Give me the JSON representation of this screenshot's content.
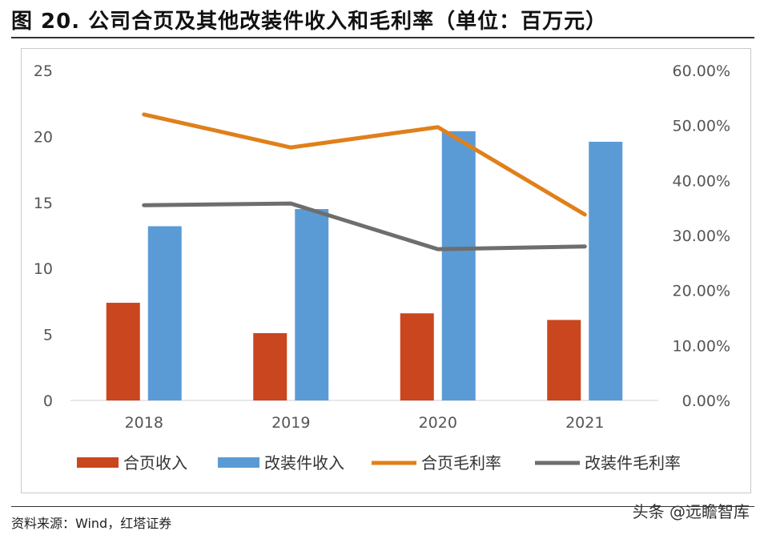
{
  "header": {
    "figure_title": "图 20. 公司合页及其他改装件收入和毛利率（单位：百万元）"
  },
  "footer": {
    "source": "资料来源：Wind，红塔证券",
    "watermark": "头条 @远瞻智库"
  },
  "chart_data": {
    "type": "bar+line",
    "title": "公司合页及其他改装件收入和毛利率（单位：百万元）",
    "categories": [
      "2018",
      "2019",
      "2020",
      "2021"
    ],
    "y_left": {
      "range": [
        0,
        25
      ],
      "ticks": [
        "0",
        "5",
        "10",
        "15",
        "20",
        "25"
      ],
      "tick_values": [
        0,
        5,
        10,
        15,
        20,
        25
      ]
    },
    "y_right": {
      "range": [
        0,
        0.6
      ],
      "ticks": [
        "0.00%",
        "10.00%",
        "20.00%",
        "30.00%",
        "40.00%",
        "50.00%",
        "60.00%"
      ],
      "tick_values": [
        0,
        0.1,
        0.2,
        0.3,
        0.4,
        0.5,
        0.6
      ]
    },
    "bar_series": [
      {
        "name": "合页收入",
        "axis": "left",
        "color": "#c9461e",
        "values": [
          7.4,
          5.1,
          6.6,
          6.1
        ]
      },
      {
        "name": "改装件收入",
        "axis": "left",
        "color": "#5b9bd5",
        "values": [
          13.2,
          14.5,
          20.4,
          19.6
        ]
      }
    ],
    "line_series": [
      {
        "name": "合页毛利率",
        "axis": "right",
        "color": "#e0801a",
        "values": [
          0.52,
          0.46,
          0.497,
          0.338
        ]
      },
      {
        "name": "改装件毛利率",
        "axis": "right",
        "color": "#6e6e6e",
        "values": [
          0.355,
          0.358,
          0.275,
          0.28
        ]
      }
    ],
    "legend_position": "bottom",
    "grid": false
  }
}
